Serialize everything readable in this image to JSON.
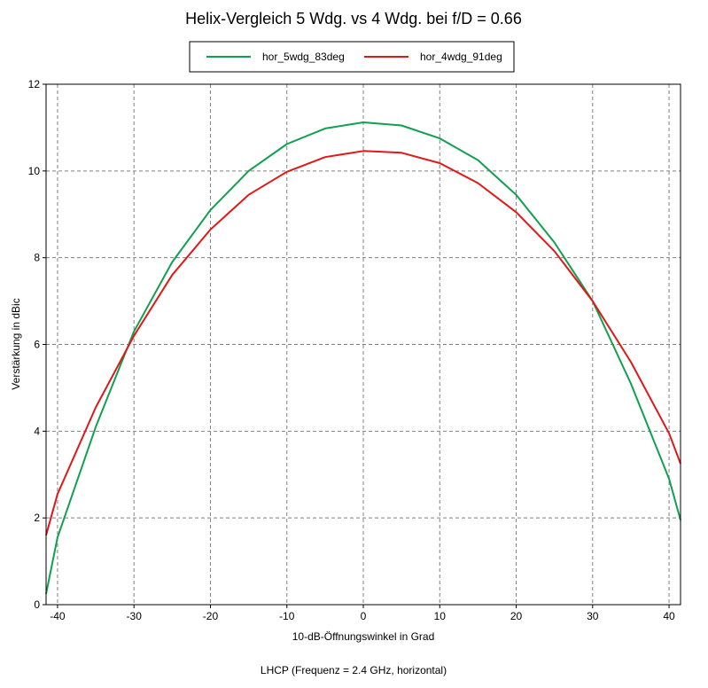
{
  "chart_data": {
    "type": "line",
    "title": "Helix-Vergleich 5 Wdg. vs 4 Wdg. bei f/D = 0.66",
    "xlabel": "10-dB-Öffnungswinkel in Grad",
    "ylabel": "Verstärkung in dBic",
    "footnote": "LHCP (Frequenz = 2.4 GHz, horizontal)",
    "xlim": [
      -41.5,
      41.5
    ],
    "ylim": [
      0,
      12
    ],
    "xticks": [
      -40,
      -30,
      -20,
      -10,
      0,
      10,
      20,
      30,
      40
    ],
    "yticks": [
      0,
      2,
      4,
      6,
      8,
      10,
      12
    ],
    "grid": true,
    "legend_position": "top-center",
    "series": [
      {
        "name": "hor_5wdg_83deg",
        "color": "#10a050",
        "x": [
          -41.5,
          -40,
          -35,
          -30,
          -25,
          -20,
          -15,
          -10,
          -5,
          0,
          5,
          10,
          15,
          20,
          25,
          30,
          35,
          40,
          41.5
        ],
        "y": [
          0.25,
          1.55,
          4.1,
          6.3,
          7.9,
          9.1,
          10.0,
          10.62,
          10.98,
          11.12,
          11.05,
          10.75,
          10.25,
          9.45,
          8.35,
          7.0,
          5.1,
          2.9,
          1.95
        ]
      },
      {
        "name": "hor_4wdg_91deg",
        "color": "#e01818",
        "x": [
          -41.5,
          -40,
          -35,
          -30,
          -25,
          -20,
          -15,
          -10,
          -5,
          0,
          5,
          10,
          15,
          20,
          25,
          30,
          35,
          40,
          41.5
        ],
        "y": [
          1.6,
          2.55,
          4.55,
          6.2,
          7.6,
          8.65,
          9.45,
          9.98,
          10.32,
          10.46,
          10.42,
          10.18,
          9.72,
          9.05,
          8.15,
          7.0,
          5.6,
          3.95,
          3.25
        ]
      }
    ]
  }
}
